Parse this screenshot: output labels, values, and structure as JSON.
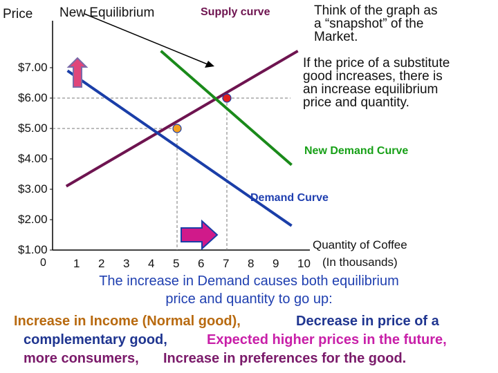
{
  "chart_data": {
    "type": "line",
    "ylabel": "Price",
    "xlabel_line1": "Quantity of Coffee",
    "xlabel_line2": "(In thousands)",
    "x_ticks": [
      "1",
      "2",
      "3",
      "4",
      "5",
      "6",
      "7",
      "8",
      "9",
      "10"
    ],
    "y_ticks": [
      "$7.00",
      "$6.00",
      "$5.00",
      "$4.00",
      "$3.00",
      "$2.00",
      "$1.00"
    ],
    "origin_label": "0",
    "xlim": [
      0,
      10.7
    ],
    "ylim": [
      0.6,
      7.5
    ],
    "series": [
      {
        "name": "Supply curve",
        "color": "#6e1450",
        "x": [
          0.55,
          9.85
        ],
        "y": [
          3.1,
          7.55
        ]
      },
      {
        "name": "Demand Curve",
        "color": "#1a3ea8",
        "x": [
          0.6,
          9.6
        ],
        "y": [
          6.9,
          1.8
        ]
      },
      {
        "name": "New Demand Curve",
        "color": "#1a8a1a",
        "x": [
          4.35,
          9.6
        ],
        "y": [
          7.55,
          3.8
        ]
      }
    ],
    "points": [
      {
        "x": 5.0,
        "y": 5.0,
        "color": "#f4a020",
        "label": ""
      },
      {
        "x": 7.0,
        "y": 6.0,
        "color": "#e01e1e",
        "label": "New Equilibrium"
      }
    ],
    "annotations": {
      "new_equilibrium": "New Equilibrium",
      "supply_curve": "Supply curve",
      "new_demand_curve": "New Demand Curve",
      "demand_curve": "Demand Curve"
    }
  },
  "notes": {
    "snapshot_lines": [
      "Think of the graph as",
      "a “snapshot” of the",
      "Market."
    ],
    "substitute_lines": [
      "If the price of a substitute",
      "good increases, there is",
      "an increase equilibrium",
      "price and quantity."
    ]
  },
  "caption": {
    "line1": "The increase in Demand causes both equilibrium",
    "line2": "price and quantity to go up:",
    "income": "Increase in Income (Normal good),",
    "complementary_a": "Decrease in price of a",
    "complementary_b": "complementary good,",
    "expected": "Expected higher prices in the future,",
    "more_consumers": "more consumers,",
    "preferences": "Increase in preferences for the good."
  },
  "colors": {
    "supply": "#6e1450",
    "demand": "#1a3ea8",
    "new_demand": "#1a8a1a",
    "new_demand_label": "#17a017",
    "demand_label": "#1f3fb0",
    "caption_blue": "#1f3fb0",
    "income_orange": "#b86a10",
    "complementary_navy": "#1f3590",
    "expected_magenta": "#c81fa8",
    "consumers_purple": "#7a1a6a",
    "up_arrow_fill": "#e0457a",
    "up_arrow_stroke": "#7a6aa8",
    "right_arrow_fill": "#d01a8a",
    "right_arrow_stroke": "#1a3ea8"
  }
}
